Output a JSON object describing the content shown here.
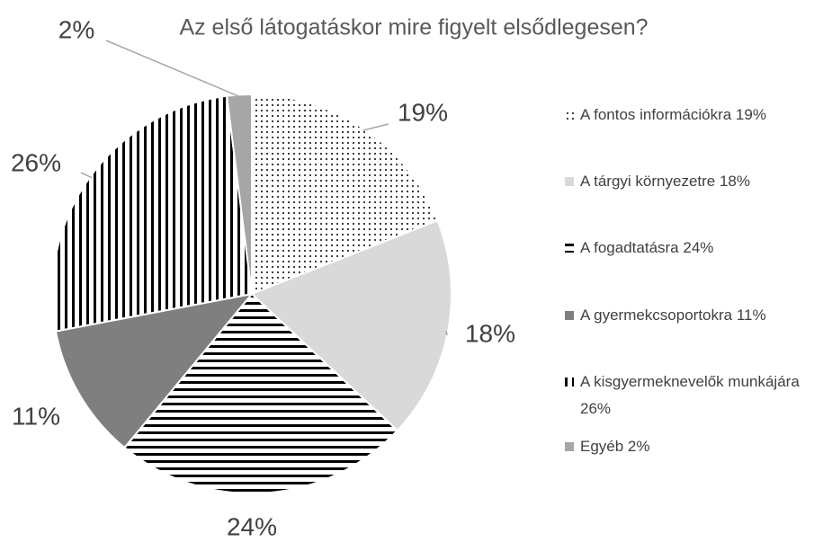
{
  "chart_data": {
    "type": "pie",
    "title": "Az első látogatáskor mire figyelt elsődlegesen?",
    "categories": [
      "A fontos információkra 19%",
      "A tárgyi környezetre 18%",
      "A fogadtatásra 24%",
      "A gyermekcsoportokra 11%",
      "A kisgyermeknevelők munkájára 26%",
      "Egyéb 2%"
    ],
    "values": [
      19,
      18,
      24,
      11,
      26,
      2
    ],
    "value_labels": [
      "19%",
      "18%",
      "24%",
      "11%",
      "26%",
      "2%"
    ],
    "colors": [
      "#000000",
      "#d9d9d9",
      "#000000",
      "#7f7f7f",
      "#000000",
      "#a6a6a6"
    ],
    "patterns": [
      "dots",
      "solid",
      "horizontal",
      "solid",
      "vertical",
      "solid"
    ],
    "legend": "right"
  }
}
